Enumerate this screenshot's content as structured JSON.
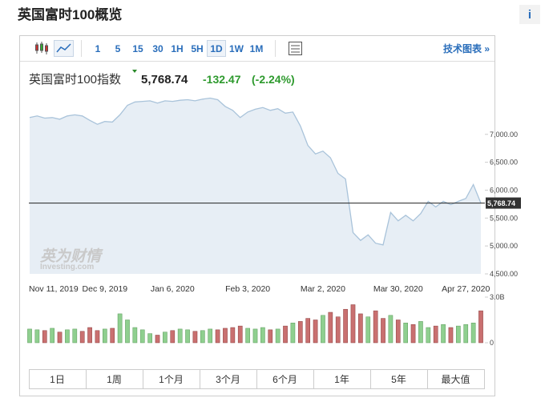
{
  "header": {
    "title": "英国富时100概览",
    "info": "i"
  },
  "toolbar": {
    "intervals": [
      "1",
      "5",
      "15",
      "30",
      "1H",
      "5H",
      "1D",
      "1W",
      "1M"
    ],
    "selected": "1D",
    "technical": "技术图表 »"
  },
  "quote": {
    "name": "英国富时100指数",
    "price": "5,768.74",
    "change": "-132.47",
    "change_pct": "(-2.24%)"
  },
  "chart_data": [
    {
      "type": "area",
      "color": "#a9c3da",
      "fill": "#e7eef5",
      "categories": [
        "Nov 11, 2019",
        null,
        null,
        null,
        null,
        null,
        null,
        null,
        null,
        null,
        "Dec 9, 2019",
        null,
        null,
        null,
        null,
        null,
        null,
        null,
        null,
        "Jan 6, 2020",
        null,
        null,
        null,
        null,
        null,
        null,
        null,
        null,
        null,
        "Feb 3, 2020",
        null,
        null,
        null,
        null,
        null,
        null,
        null,
        null,
        null,
        "Mar 2, 2020",
        null,
        null,
        null,
        null,
        null,
        null,
        null,
        null,
        null,
        "Mar 30, 2020",
        null,
        null,
        null,
        null,
        null,
        null,
        null,
        null,
        "Apr 27, 2020",
        null,
        null
      ],
      "values": [
        7300,
        7330,
        7290,
        7300,
        7270,
        7330,
        7350,
        7330,
        7250,
        7180,
        7230,
        7220,
        7350,
        7520,
        7580,
        7590,
        7600,
        7560,
        7600,
        7590,
        7610,
        7620,
        7600,
        7630,
        7650,
        7620,
        7500,
        7430,
        7300,
        7400,
        7450,
        7480,
        7430,
        7460,
        7380,
        7400,
        7150,
        6800,
        6650,
        6700,
        6580,
        6300,
        6200,
        5240,
        5100,
        5200,
        5050,
        5020,
        5600,
        5450,
        5550,
        5450,
        5580,
        5800,
        5700,
        5800,
        5740,
        5800,
        5850,
        6100,
        5768.74
      ],
      "ylim": [
        4500,
        7800
      ],
      "yticks": [
        {
          "value": 4500,
          "label": "4,500.00"
        },
        {
          "value": 5000,
          "label": "5,000.00"
        },
        {
          "value": 5500,
          "label": "5,500.00"
        },
        {
          "value": 6000,
          "label": "6,000.00"
        },
        {
          "value": 6500,
          "label": "6,500.00"
        },
        {
          "value": 7000,
          "label": "7,000.00"
        }
      ],
      "current": {
        "value": 5768.74,
        "label": "5,768.74"
      }
    },
    {
      "type": "bar",
      "up_color": "#8fcf8f",
      "down_color": "#c97070",
      "values": [
        900000000,
        850000000,
        800000000,
        950000000,
        700000000,
        850000000,
        900000000,
        750000000,
        1000000000,
        800000000,
        900000000,
        950000000,
        1900000000,
        1500000000,
        1000000000,
        850000000,
        600000000,
        500000000,
        700000000,
        800000000,
        900000000,
        850000000,
        750000000,
        800000000,
        900000000,
        850000000,
        950000000,
        1000000000,
        1100000000,
        950000000,
        900000000,
        1000000000,
        850000000,
        900000000,
        1100000000,
        1300000000,
        1400000000,
        1600000000,
        1500000000,
        1800000000,
        2000000000,
        1700000000,
        2200000000,
        2500000000,
        1900000000,
        1700000000,
        2100000000,
        1600000000,
        1800000000,
        1500000000,
        1300000000,
        1200000000,
        1400000000,
        1000000000,
        1100000000,
        1200000000,
        1000000000,
        1100000000,
        1200000000,
        1300000000,
        2100000000
      ],
      "ylim": [
        0,
        3000000000
      ],
      "yticks": [
        0,
        {
          "value": 3000000000,
          "label": "3.0B"
        }
      ]
    }
  ],
  "watermark": {
    "brand": "英为财情",
    "site": "Investing.com"
  },
  "ranges": [
    "1日",
    "1周",
    "1个月",
    "3个月",
    "6个月",
    "1年",
    "5年",
    "最大值"
  ]
}
